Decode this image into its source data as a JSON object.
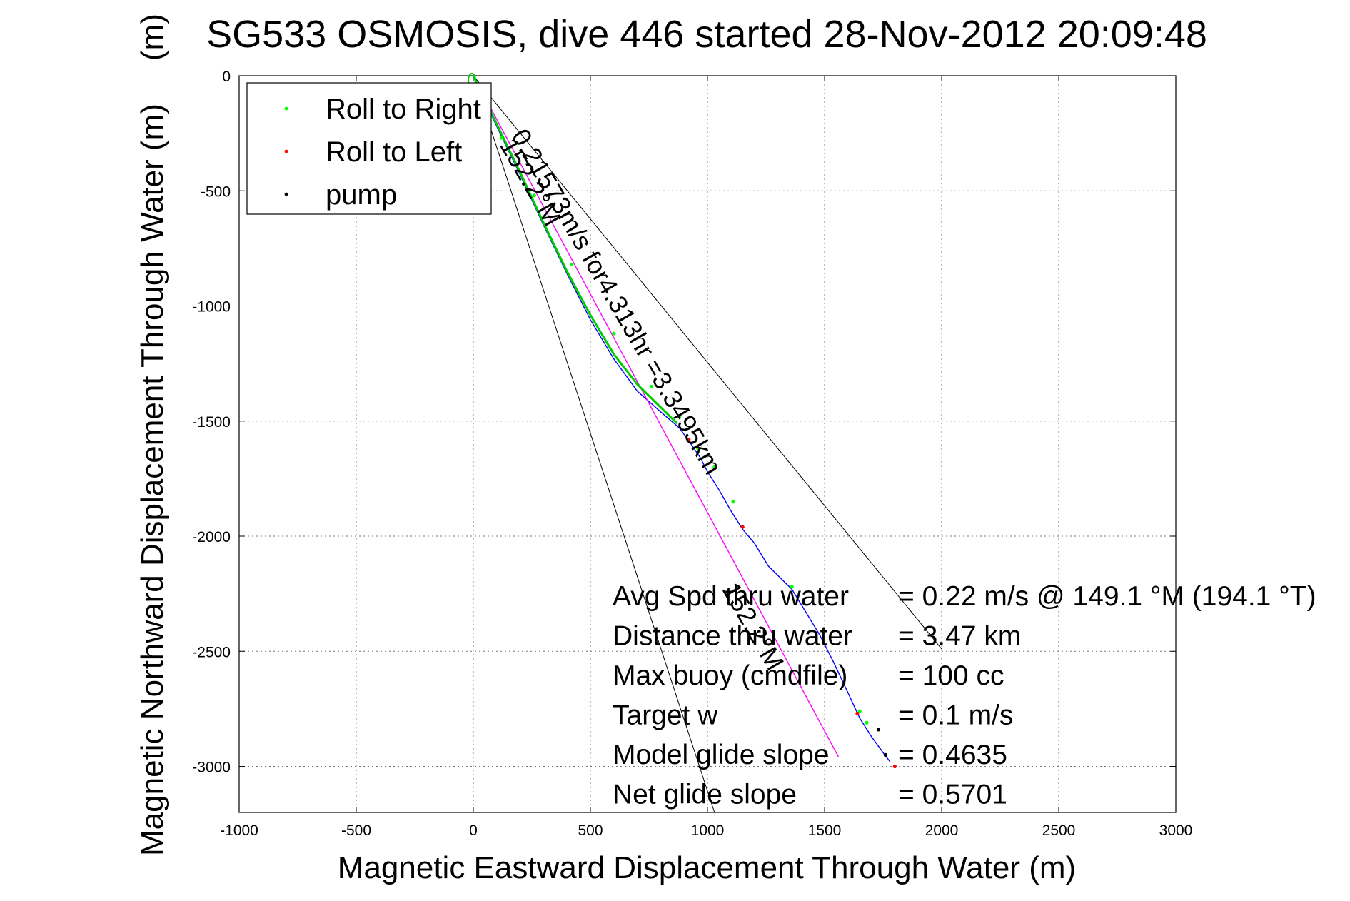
{
  "chart_data": {
    "type": "line",
    "title": "SG533 OSMOSIS, dive 446 started 28-Nov-2012 20:09:48",
    "title_overlap_text": "(m)",
    "xlabel": "Magnetic Eastward Displacement Through Water (m)",
    "ylabel": "Magnetic Northward Displacement Through Water (m)",
    "xlim": [
      -1000,
      3000
    ],
    "ylim": [
      -3200,
      0
    ],
    "xticks": [
      -1000,
      -500,
      0,
      500,
      1000,
      1500,
      2000,
      2500,
      3000
    ],
    "xtick_labels": [
      "-1000",
      "-500",
      "0",
      "500",
      "1000",
      "1500",
      "2000",
      "2500",
      "3000"
    ],
    "yticks": [
      0,
      -500,
      -1000,
      -1500,
      -2000,
      -2500,
      -3000
    ],
    "ytick_labels": [
      "0",
      "-500",
      "-1000",
      "-1500",
      "-2000",
      "-2500",
      "-3000"
    ],
    "grid": true,
    "legend": {
      "placement": "top-left",
      "entries": [
        {
          "label": "Roll to Right",
          "color": "#00ff00"
        },
        {
          "label": "Roll to Left",
          "color": "#ff0000"
        },
        {
          "label": "pump",
          "color": "#000000"
        }
      ]
    },
    "series": [
      {
        "role": "track",
        "color": "#0000ff",
        "x": [
          0,
          100,
          200,
          300,
          400,
          500,
          600,
          700,
          800,
          880,
          930,
          970,
          1000,
          1050,
          1100,
          1150,
          1200,
          1260,
          1310,
          1360,
          1420,
          1480,
          1540,
          1600,
          1650,
          1700,
          1750,
          1780
        ],
        "y": [
          0,
          -220,
          -430,
          -650,
          -860,
          -1060,
          -1230,
          -1370,
          -1460,
          -1530,
          -1600,
          -1660,
          -1720,
          -1800,
          -1890,
          -1970,
          -2030,
          -2130,
          -2180,
          -2230,
          -2330,
          -2430,
          -2550,
          -2680,
          -2790,
          -2870,
          -2940,
          -2980
        ]
      },
      {
        "role": "net-displacement",
        "color": "#ff00ff",
        "x": [
          0,
          1560
        ],
        "y": [
          0,
          -2960
        ]
      },
      {
        "role": "model-heading",
        "color": "#00cc00",
        "x": [
          0,
          100,
          200,
          300,
          400,
          500,
          600,
          700,
          800,
          870
        ],
        "y": [
          0,
          -210,
          -420,
          -640,
          -850,
          -1040,
          -1210,
          -1340,
          -1440,
          -1510
        ]
      },
      {
        "role": "roll-right",
        "color": "#00ff00",
        "marker": "dot",
        "x": [
          40,
          120,
          260,
          420,
          600,
          760,
          880,
          960,
          1030,
          1110,
          1360,
          1650,
          1680
        ],
        "y": [
          -100,
          -270,
          -520,
          -820,
          -1120,
          -1350,
          -1480,
          -1620,
          -1700,
          -1850,
          -2220,
          -2760,
          -2810
        ]
      },
      {
        "role": "roll-left",
        "color": "#ff0000",
        "marker": "dot",
        "x": [
          920,
          1150,
          1640,
          1800
        ],
        "y": [
          -1580,
          -1960,
          -2770,
          -3000
        ]
      },
      {
        "role": "pump",
        "color": "#000000",
        "marker": "dot",
        "x": [
          1730,
          1760
        ],
        "y": [
          -2840,
          -2950
        ]
      }
    ],
    "annotation_lines": [
      {
        "x": [
          0,
          2000
        ],
        "y": [
          0,
          -2490
        ]
      },
      {
        "x": [
          0,
          1030
        ],
        "y": [
          0,
          -3200
        ]
      }
    ],
    "rotated_labels": [
      {
        "text": "0.21573m/s for4.313hr =3.3495km",
        "x": 160,
        "y": -260,
        "angle": 60
      },
      {
        "text": "152.2°M",
        "x": 110,
        "y": -300,
        "angle": 60
      },
      {
        "text": "152.2°M",
        "x": 1060,
        "y": -2230,
        "angle": 60
      }
    ],
    "stats": [
      {
        "label": "Avg Spd thru water",
        "value": "=  0.22 m/s @ 149.1 °M (194.1 °T)"
      },
      {
        "label": "Distance thru water",
        "value": "=  3.47 km"
      },
      {
        "label": "Max buoy (cmdfile)",
        "value": "= 100 cc"
      },
      {
        "label": "Target w",
        "value": "= 0.1 m/s"
      },
      {
        "label": "Model glide slope",
        "value": "= 0.4635"
      },
      {
        "label": "Net glide slope",
        "value": "= 0.5701"
      }
    ]
  }
}
